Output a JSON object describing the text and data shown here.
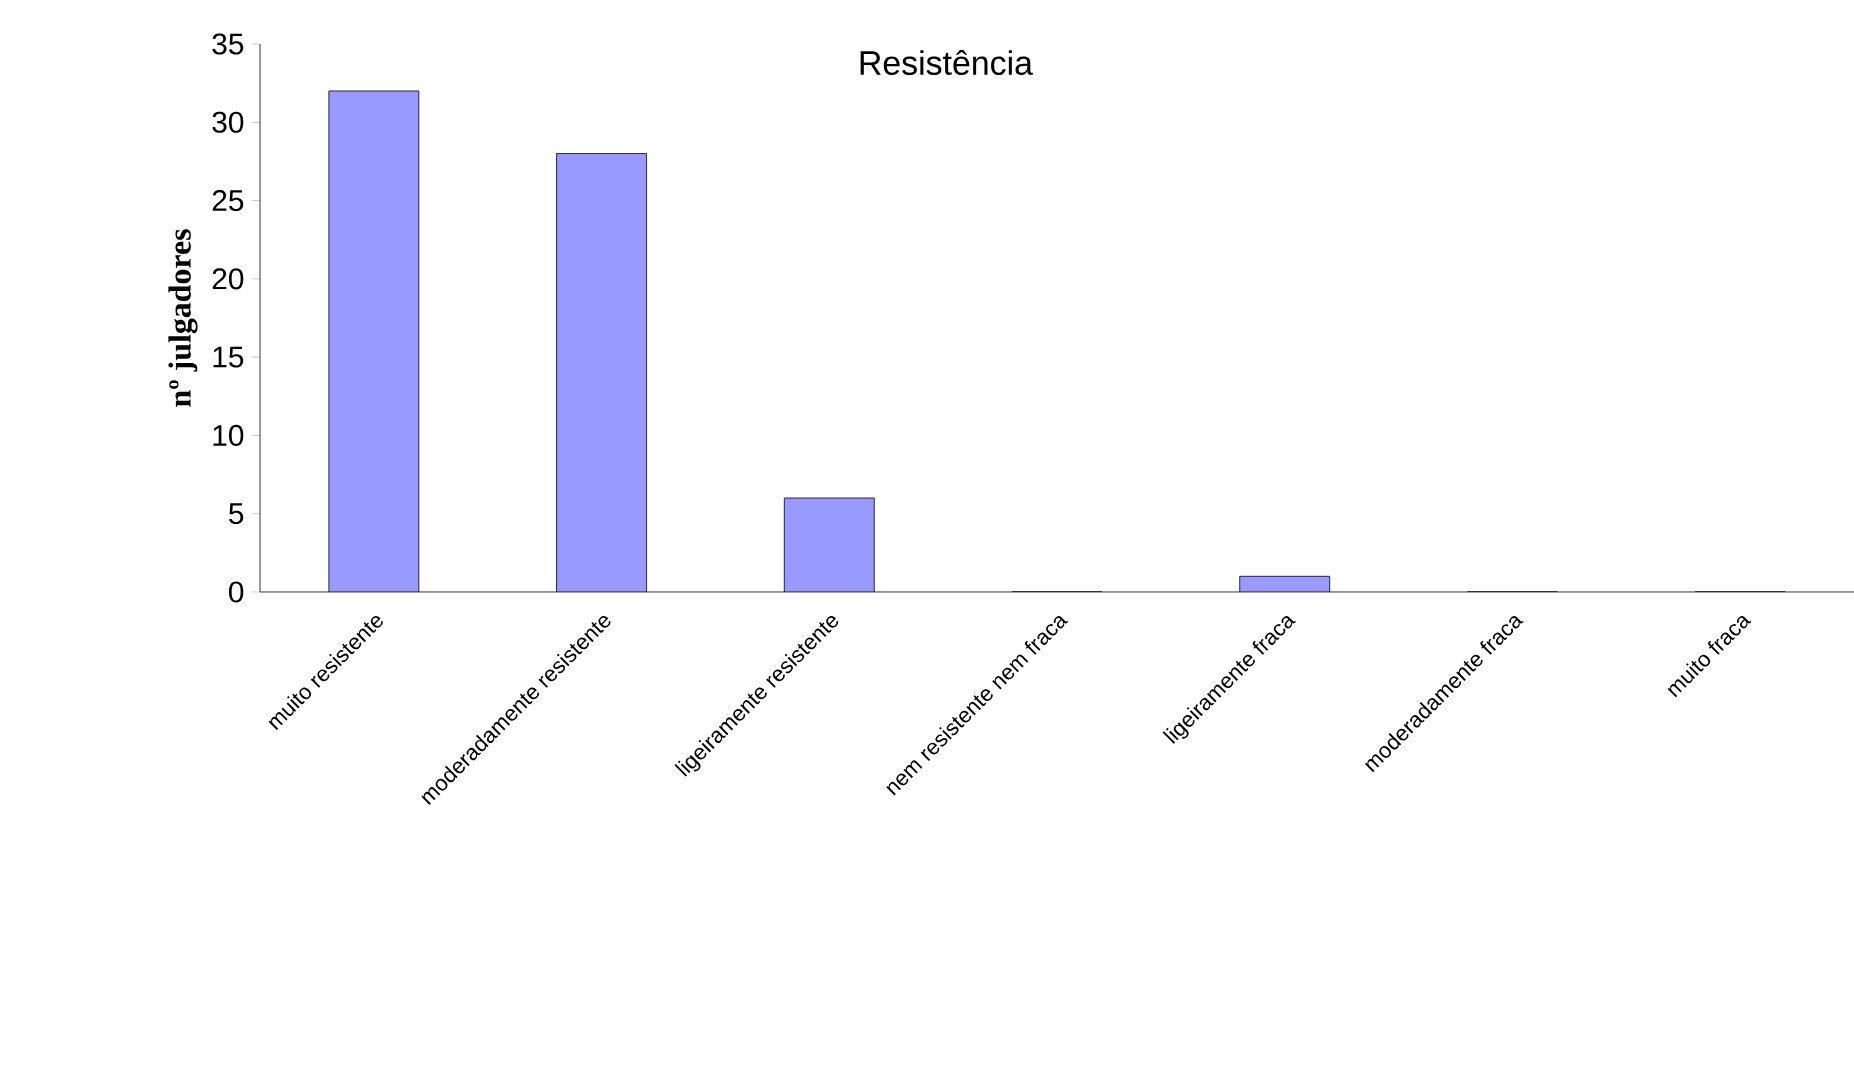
{
  "chart_data": {
    "type": "bar",
    "title": "Resistência",
    "ylabel": "nº julgadores",
    "categories": [
      "muito resistente",
      "moderadamente resistente",
      "ligeiramente resistente",
      "nem resistente nem fraca",
      "ligeiramente fraca",
      "moderadamente fraca",
      "muito fraca"
    ],
    "values": [
      32,
      28,
      6,
      0,
      1,
      0,
      0
    ],
    "color": "#9999ff",
    "ylim": [
      0,
      35
    ],
    "yticks": [
      0,
      5,
      10,
      15,
      20,
      25,
      30,
      35
    ]
  }
}
